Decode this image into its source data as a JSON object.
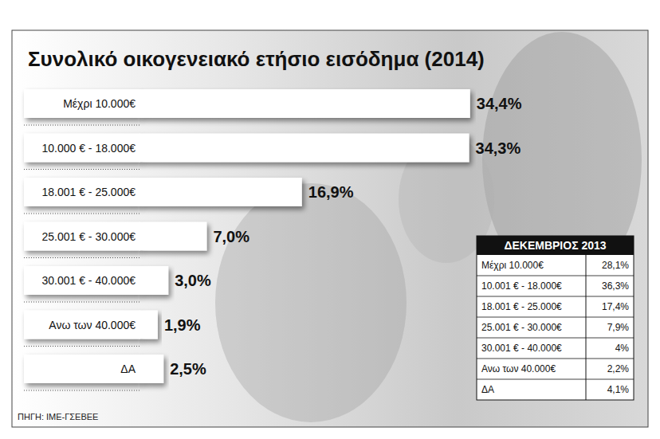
{
  "chart_data": {
    "type": "bar",
    "orientation": "horizontal",
    "title": "Συνολικό οικογενειακό ετήσιο εισόδημα (2014)",
    "categories": [
      "Μέχρι 10.000€",
      "10.000 € - 18.000€",
      "18.001 € - 25.000€",
      "25.001 € - 30.000€",
      "30.001 € - 40.000€",
      "Ανω των 40.000€",
      "ΔΑ"
    ],
    "values": [
      34.4,
      34.3,
      16.9,
      7.0,
      3.0,
      1.9,
      2.5
    ],
    "value_labels": [
      "34,4%",
      "34,3%",
      "16,9%",
      "7,0%",
      "3,0%",
      "1,9%",
      "2,5%"
    ],
    "color": "#ffffff",
    "xlim": [
      0,
      35
    ],
    "data_labels": true,
    "tick_labels": false,
    "grid": false
  },
  "source": "ΠΗΓΗ: ΙΜΕ-ΓΣΕΒΕΕ",
  "inset_table": {
    "title": "ΔΕΚΕΜΒΡΙΟΣ 2013",
    "rows": [
      [
        "Μέχρι 10.000€",
        "28,1%"
      ],
      [
        "10.001 € - 18.000€",
        "36,3%"
      ],
      [
        "18.001 € - 25.000€",
        "17,4%"
      ],
      [
        "25.001 € - 30.000€",
        "7,9%"
      ],
      [
        "30.001 € - 40.000€",
        "4%"
      ],
      [
        "Ανω των 40.000€",
        "2,2%"
      ],
      [
        "ΔΑ",
        "4,1%"
      ]
    ]
  }
}
